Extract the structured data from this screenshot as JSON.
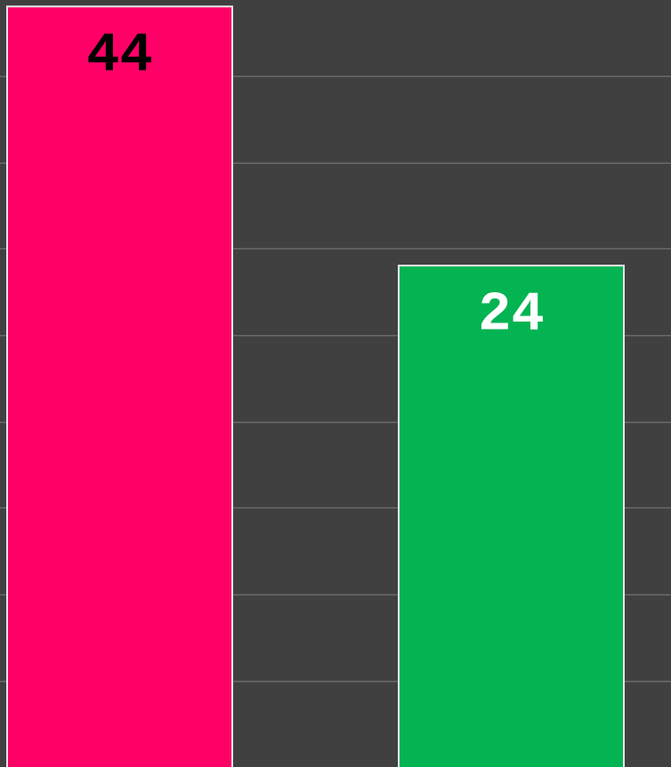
{
  "chart_data": {
    "type": "bar",
    "values": [
      44,
      24
    ],
    "colors": [
      "#ff0066",
      "#04b352"
    ],
    "label_colors": [
      "#000000",
      "#ffffff"
    ],
    "ylim": [
      -14.7,
      44.5
    ],
    "yticks": [
      -8.1,
      -1.4,
      5.3,
      11.9,
      18.6,
      25.3,
      31.9,
      38.6
    ],
    "grid": true
  }
}
